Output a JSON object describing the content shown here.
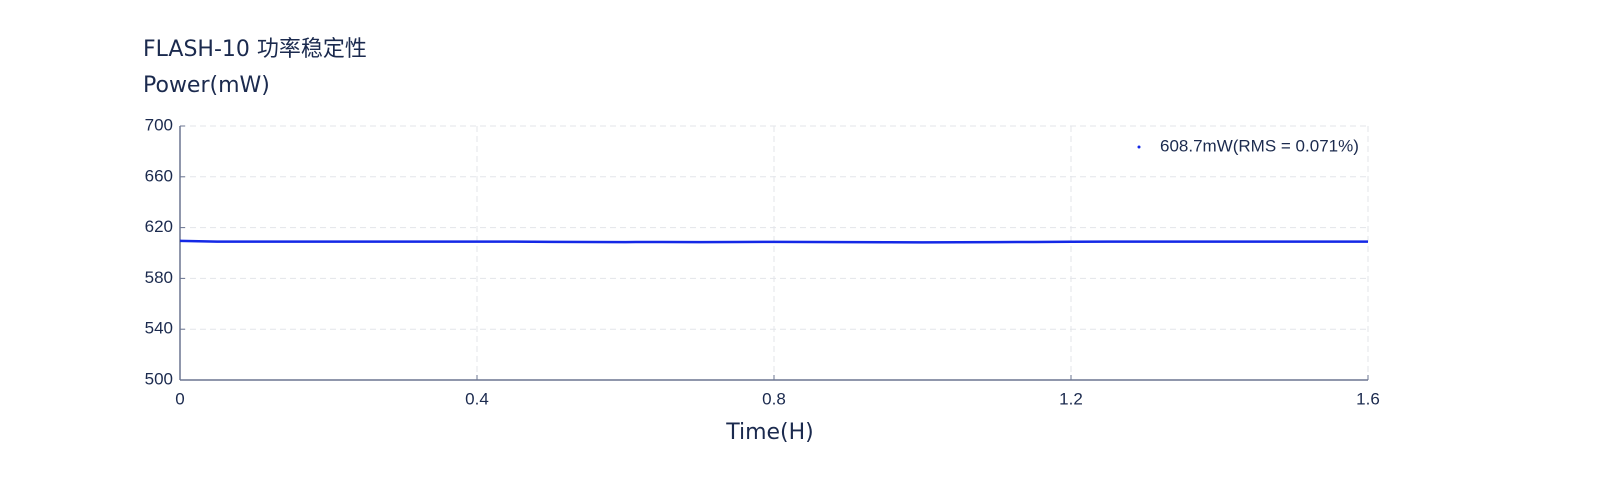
{
  "chart_data": {
    "type": "line",
    "title": "FLASH-10 功率稳定性",
    "y_label": "Power(mW)",
    "x_label": "Time(H)",
    "x": [
      0,
      0.05,
      0.1,
      0.15,
      0.2,
      0.25,
      0.3,
      0.35,
      0.4,
      0.45,
      0.5,
      0.55,
      0.6,
      0.65,
      0.7,
      0.75,
      0.8,
      0.85,
      0.9,
      0.95,
      1.0,
      1.05,
      1.1,
      1.15,
      1.2,
      1.25,
      1.3,
      1.35,
      1.4,
      1.45,
      1.5,
      1.55,
      1.6
    ],
    "series": [
      {
        "name": "608.7mW(RMS = 0.071%)",
        "color": "#1428e6",
        "values": [
          609.5,
          609,
          609,
          609,
          609,
          609,
          609,
          609,
          609,
          609,
          608.8,
          608.7,
          608.6,
          608.7,
          608.6,
          608.7,
          608.8,
          608.7,
          608.6,
          608.5,
          608.4,
          608.5,
          608.6,
          608.7,
          608.9,
          609,
          609,
          609,
          609,
          609,
          609,
          609,
          609
        ]
      }
    ],
    "xlim": [
      0,
      1.6
    ],
    "xticks": [
      0,
      0.4,
      0.8,
      1.2,
      1.6
    ],
    "ylim": [
      500,
      700
    ],
    "yticks": [
      500,
      540,
      580,
      620,
      660,
      700
    ],
    "grid": true,
    "legend": "upper right"
  }
}
